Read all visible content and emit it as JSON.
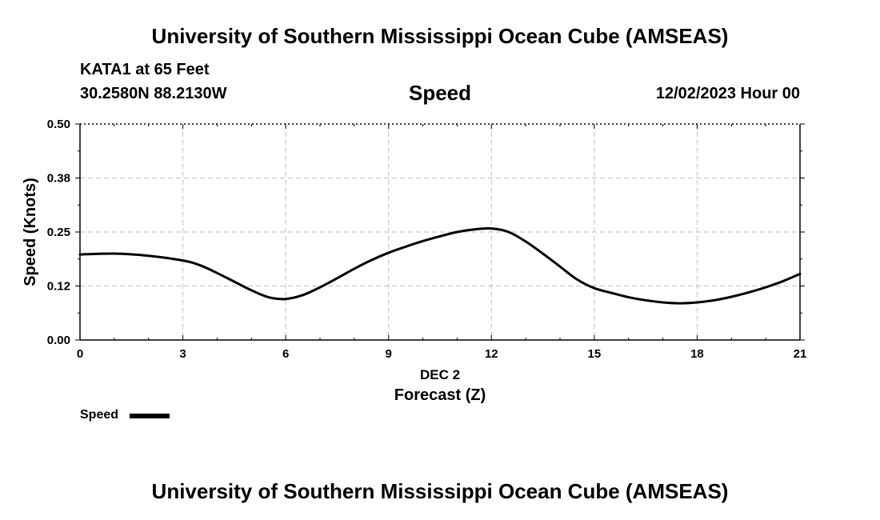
{
  "header": {
    "title": "University of Southern Mississippi Ocean Cube (AMSEAS)"
  },
  "station": {
    "name": "KATA1 at 65 Feet",
    "coords": "30.2580N  88.2130W"
  },
  "datetime": "12/02/2023 Hour 00",
  "legend": {
    "label": "Speed",
    "color": "#000000"
  },
  "footer": {
    "title": "University of Southern Mississippi Ocean Cube (AMSEAS)"
  },
  "chart_data": {
    "type": "line",
    "title": "Speed",
    "xlabel": "Forecast (Z)",
    "x_date_label": "DEC 2",
    "ylabel": "Speed (Knots)",
    "xlim": [
      0,
      21
    ],
    "ylim": [
      0,
      0.5
    ],
    "x_ticks": [
      0,
      3,
      6,
      9,
      12,
      15,
      18,
      21
    ],
    "x_tick_labels": [
      "0",
      "3",
      "6",
      "9",
      "12",
      "15",
      "18",
      "21"
    ],
    "y_ticks": [
      0,
      0.125,
      0.25,
      0.375,
      0.5
    ],
    "y_tick_labels": [
      "0.00",
      "0.12",
      "0.25",
      "0.38",
      "0.50"
    ],
    "grid": true,
    "series": [
      {
        "name": "Speed",
        "color": "#000000",
        "x": [
          0,
          1,
          2,
          3,
          3.5,
          4,
          4.5,
          5,
          5.5,
          6,
          6.5,
          7,
          7.5,
          8,
          8.5,
          9,
          9.5,
          10,
          10.5,
          11,
          11.5,
          12,
          12.5,
          13,
          13.5,
          14,
          14.5,
          15,
          15.5,
          16,
          16.5,
          17,
          17.5,
          18,
          18.5,
          19,
          19.5,
          20,
          20.5,
          21
        ],
        "y": [
          0.198,
          0.2,
          0.195,
          0.184,
          0.173,
          0.155,
          0.135,
          0.115,
          0.099,
          0.095,
          0.104,
          0.122,
          0.143,
          0.165,
          0.185,
          0.202,
          0.216,
          0.229,
          0.24,
          0.25,
          0.256,
          0.258,
          0.25,
          0.228,
          0.2,
          0.17,
          0.14,
          0.12,
          0.109,
          0.099,
          0.092,
          0.087,
          0.085,
          0.087,
          0.092,
          0.1,
          0.11,
          0.122,
          0.136,
          0.153
        ]
      }
    ]
  }
}
